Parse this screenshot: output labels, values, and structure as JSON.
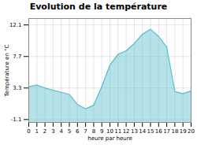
{
  "chart_data": {
    "type": "area",
    "title": "Evolution de la température",
    "xlabel": "heure par heure",
    "ylabel": "Température en °C",
    "x": [
      0,
      1,
      2,
      3,
      4,
      5,
      6,
      7,
      8,
      9,
      10,
      11,
      12,
      13,
      14,
      15,
      16,
      17,
      18,
      19,
      20
    ],
    "values": [
      3.5,
      3.7,
      3.3,
      3.0,
      2.7,
      2.4,
      1.0,
      0.4,
      0.9,
      3.5,
      6.5,
      8.0,
      8.5,
      9.5,
      10.8,
      11.5,
      10.5,
      9.0,
      2.8,
      2.5,
      2.9
    ],
    "color": "#5bbccc",
    "xlim": [
      0,
      20
    ],
    "xticks": [
      0,
      1,
      2,
      3,
      4,
      5,
      6,
      7,
      8,
      9,
      10,
      11,
      12,
      13,
      14,
      15,
      16,
      17,
      18,
      19,
      20
    ],
    "ylim": [
      -1.5,
      13.0
    ],
    "yticks": [
      -1.1,
      3.3,
      7.7,
      12.1
    ],
    "grid": true
  }
}
